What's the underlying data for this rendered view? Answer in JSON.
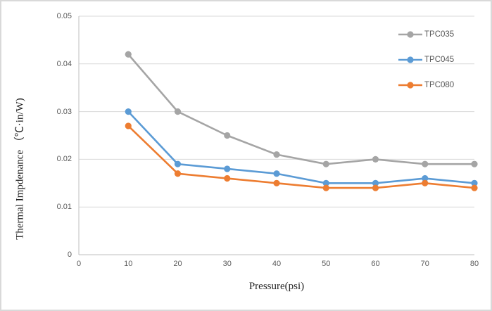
{
  "chart_data": {
    "type": "line",
    "title": "",
    "xlabel": "Pressure(psi)",
    "ylabel": "Thermal Impdenance （℃·in/W)",
    "x": [
      10,
      20,
      30,
      40,
      50,
      60,
      70,
      80
    ],
    "xlim": [
      0,
      80
    ],
    "ylim": [
      0,
      0.05
    ],
    "x_tick_values": [
      0,
      10,
      20,
      30,
      40,
      50,
      60,
      70,
      80
    ],
    "x_tick_labels": [
      "0",
      "10",
      "20",
      "30",
      "40",
      "50",
      "60",
      "70",
      "80"
    ],
    "y_tick_values": [
      0,
      0.01,
      0.02,
      0.03,
      0.04,
      0.05
    ],
    "y_tick_labels": [
      "0",
      "0.01",
      "0.02",
      "0.03",
      "0.04",
      "0.05"
    ],
    "grid": "horizontal",
    "legend_position": "inside-top-right",
    "series": [
      {
        "name": "TPC035",
        "color": "#A5A5A5",
        "values": [
          0.042,
          0.03,
          0.025,
          0.021,
          0.019,
          0.02,
          0.019,
          0.019
        ]
      },
      {
        "name": "TPC045",
        "color": "#5B9BD5",
        "values": [
          0.03,
          0.019,
          0.018,
          0.017,
          0.015,
          0.015,
          0.016,
          0.015
        ]
      },
      {
        "name": "TPC080",
        "color": "#ED7D31",
        "values": [
          0.027,
          0.017,
          0.016,
          0.015,
          0.014,
          0.014,
          0.015,
          0.014
        ]
      }
    ],
    "colors": {
      "gridline": "#D9D9D9",
      "axis_line": "#BFBFBF",
      "tick_label": "#595959",
      "axis_title": "#1F1F1F",
      "legend_text": "#595959",
      "frame_border": "#D9D9D9",
      "background": "#FFFFFF"
    }
  }
}
